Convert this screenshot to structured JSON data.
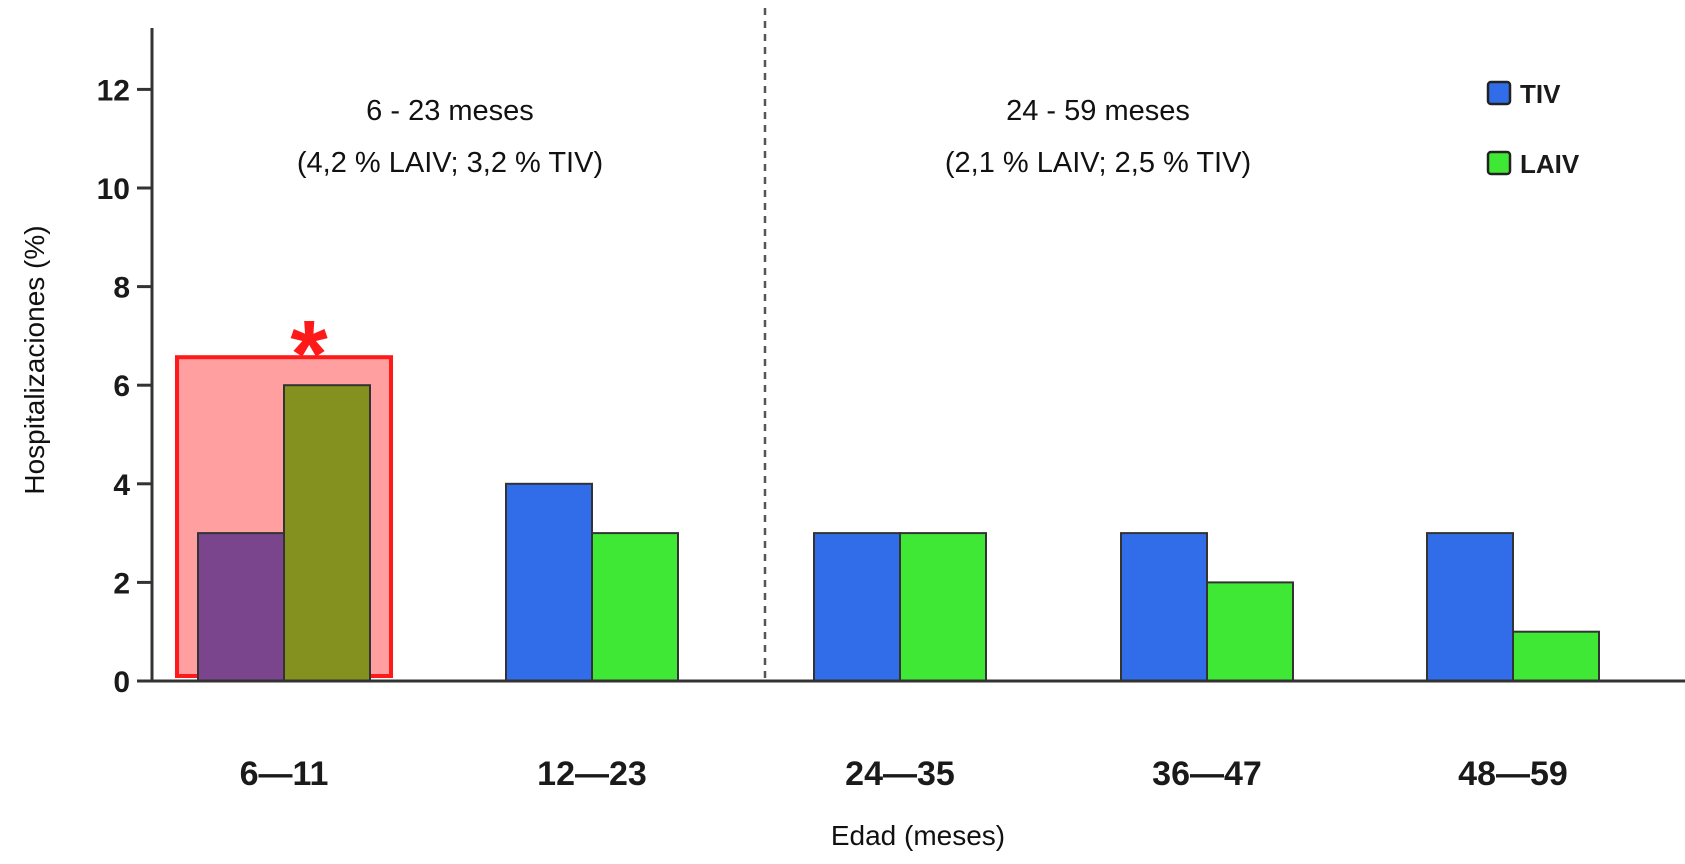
{
  "chart_data": {
    "type": "bar",
    "xlabel": "Edad (meses)",
    "ylabel": "Hospitalizaciones (%)",
    "ylim": [
      0,
      13
    ],
    "yticks": [
      "0",
      "2",
      "4",
      "6",
      "8",
      "10",
      "12"
    ],
    "categories": [
      "6—11",
      "12—23",
      "24—35",
      "36—47",
      "48—59"
    ],
    "series": [
      {
        "name": "TIV",
        "color": "#316de9",
        "values": [
          3,
          4,
          3,
          3,
          3
        ]
      },
      {
        "name": "LAIV",
        "color": "#3fe834",
        "values": [
          6,
          3,
          3,
          2,
          1
        ]
      }
    ],
    "highlighted_category": "6—11",
    "highlight_colors": {
      "box_fill": "#ff9f9f",
      "box_stroke": "#ff1a1a",
      "tiv_bar": "#7a458c",
      "laiv_bar": "#85911f"
    },
    "highlight_marker": "*",
    "grid": false,
    "legend": {
      "position": "top-right"
    },
    "annotations": [
      {
        "line1": "6 - 23 meses",
        "line2": "(4,2 % LAIV; 3,2 % TIV)"
      },
      {
        "line1": "24 - 59 meses",
        "line2": "(2,1 % LAIV; 2,5 % TIV)"
      }
    ]
  }
}
